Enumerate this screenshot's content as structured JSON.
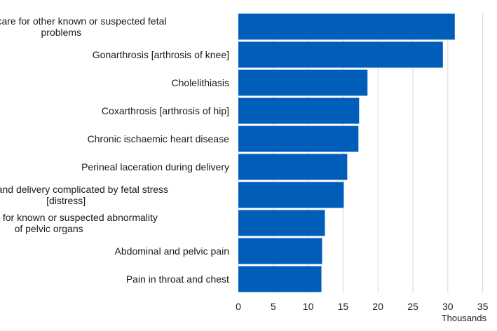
{
  "chart_data": {
    "type": "bar",
    "orientation": "horizontal",
    "categories": [
      "Maternal care for other known or suspected fetal problems",
      "Gonarthrosis [arthrosis of knee]",
      "Cholelithiasis",
      "Coxarthrosis [arthrosis of hip]",
      "Chronic ischaemic heart disease",
      "Perineal laceration during delivery",
      "Labour and delivery complicated by fetal stress [distress]",
      "Maternal care for known or suspected abnormality of pelvic organs",
      "Abdominal and pelvic pain",
      "Pain in throat and chest"
    ],
    "category_label_lines": [
      [
        "Maternal care for other known or suspected fetal",
        "problems"
      ],
      [
        "Gonarthrosis [arthrosis of knee]"
      ],
      [
        "Cholelithiasis"
      ],
      [
        "Coxarthrosis [arthrosis of hip]"
      ],
      [
        "Chronic ischaemic heart disease"
      ],
      [
        "Perineal laceration during delivery"
      ],
      [
        "Labour and delivery complicated by fetal stress",
        "[distress]"
      ],
      [
        "Maternal care for known or suspected abnormality",
        "of pelvic organs"
      ],
      [
        "Abdominal and pelvic pain"
      ],
      [
        "Pain in throat and chest"
      ]
    ],
    "values": [
      31.0,
      29.3,
      18.5,
      17.3,
      17.2,
      15.6,
      15.1,
      12.4,
      12.0,
      11.9
    ],
    "xlim": [
      0,
      35
    ],
    "xticks": [
      0,
      5,
      10,
      15,
      20,
      25,
      30,
      35
    ],
    "xlabel": "Thousands",
    "grid": "vertical",
    "bar_color": "#005eb8",
    "grid_color": "#d9d9d9",
    "title": "",
    "ylabel": ""
  }
}
